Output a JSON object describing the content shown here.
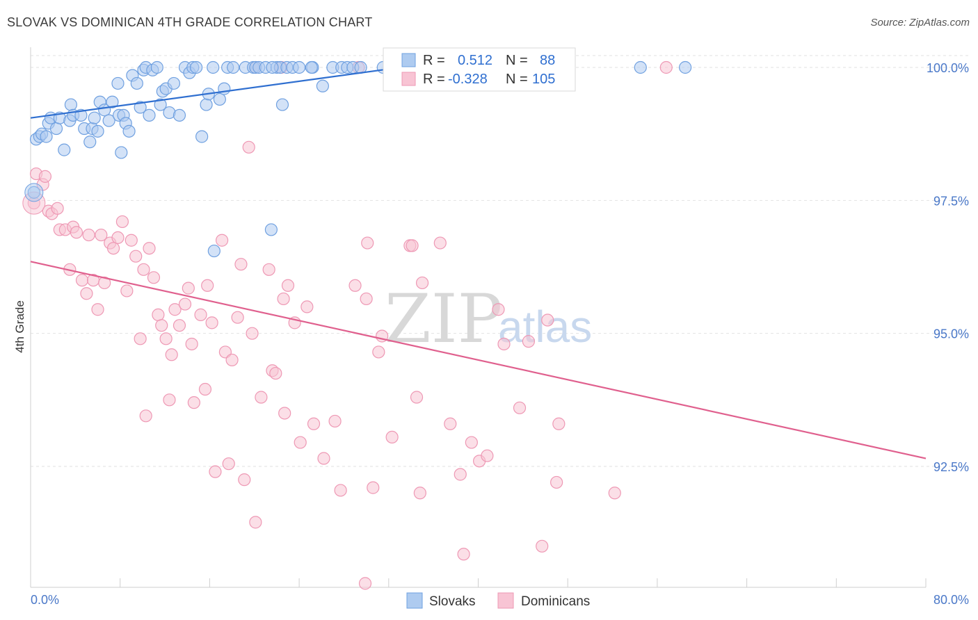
{
  "title": "SLOVAK VS DOMINICAN 4TH GRADE CORRELATION CHART",
  "source": "Source: ZipAtlas.com",
  "watermark": {
    "left": "ZIP",
    "right": "atlas"
  },
  "legend": {
    "r_label": "R =",
    "n_label": "N =",
    "rows": [
      {
        "r": "0.512",
        "n": "88"
      },
      {
        "r": "-0.328",
        "n": "105"
      }
    ]
  },
  "bottom_legend": [
    "Slovaks",
    "Dominicans"
  ],
  "colors": {
    "slovak_fill": "#aecbf0",
    "slovak_stroke": "#6fa0e0",
    "slovak_line": "#2f6fd0",
    "dominican_fill": "#f8c4d4",
    "dominican_stroke": "#ee98b4",
    "dominican_line": "#e0608e",
    "axis_text": "#4a78c8",
    "grid": "#e2e2e2"
  },
  "chart_data": {
    "type": "scatter",
    "title": "SLOVAK VS DOMINICAN 4TH GRADE CORRELATION CHART",
    "xlabel": "",
    "ylabel": "4th Grade",
    "xlim": [
      0,
      80
    ],
    "ylim": [
      90.0,
      100.2
    ],
    "x_tick_labels": [
      "0.0%",
      "80.0%"
    ],
    "y_ticks": [
      92.5,
      95.0,
      97.5,
      100.0
    ],
    "y_tick_labels": [
      "92.5%",
      "95.0%",
      "97.5%",
      "100.0%"
    ],
    "grid": true,
    "legend_position": "top-center",
    "series": [
      {
        "name": "Slovaks",
        "r": 0.512,
        "n": 88,
        "trend": {
          "x": [
            0,
            32
          ],
          "y": [
            99.05,
            99.97
          ]
        },
        "points": [
          [
            0.3,
            97.65
          ],
          [
            0.5,
            98.65
          ],
          [
            0.8,
            98.7
          ],
          [
            1.0,
            98.75
          ],
          [
            1.4,
            98.7
          ],
          [
            1.6,
            98.95
          ],
          [
            1.8,
            99.05
          ],
          [
            2.3,
            98.85
          ],
          [
            2.6,
            99.05
          ],
          [
            3.0,
            98.45
          ],
          [
            3.5,
            99.0
          ],
          [
            3.6,
            99.3
          ],
          [
            3.8,
            99.1
          ],
          [
            4.5,
            99.1
          ],
          [
            4.8,
            98.85
          ],
          [
            5.3,
            98.6
          ],
          [
            5.5,
            98.85
          ],
          [
            5.7,
            99.05
          ],
          [
            6.0,
            98.8
          ],
          [
            6.2,
            99.35
          ],
          [
            6.6,
            99.2
          ],
          [
            7.0,
            99.0
          ],
          [
            7.3,
            99.35
          ],
          [
            7.8,
            99.7
          ],
          [
            7.9,
            99.1
          ],
          [
            8.1,
            98.4
          ],
          [
            8.3,
            99.1
          ],
          [
            8.5,
            98.95
          ],
          [
            8.8,
            98.8
          ],
          [
            9.1,
            99.85
          ],
          [
            9.5,
            99.7
          ],
          [
            9.8,
            99.25
          ],
          [
            10.1,
            99.95
          ],
          [
            10.3,
            100.0
          ],
          [
            10.6,
            99.1
          ],
          [
            10.9,
            99.95
          ],
          [
            11.3,
            100.0
          ],
          [
            11.6,
            99.3
          ],
          [
            11.8,
            99.55
          ],
          [
            12.1,
            99.6
          ],
          [
            12.4,
            99.15
          ],
          [
            12.8,
            99.7
          ],
          [
            13.3,
            99.1
          ],
          [
            13.8,
            100.0
          ],
          [
            14.2,
            99.9
          ],
          [
            14.5,
            100.0
          ],
          [
            14.8,
            100.0
          ],
          [
            15.3,
            98.7
          ],
          [
            15.7,
            99.3
          ],
          [
            15.9,
            99.5
          ],
          [
            16.3,
            100.0
          ],
          [
            16.9,
            99.4
          ],
          [
            17.3,
            99.6
          ],
          [
            17.6,
            100.0
          ],
          [
            18.1,
            100.0
          ],
          [
            19.2,
            100.0
          ],
          [
            19.9,
            100.0
          ],
          [
            20.1,
            100.0
          ],
          [
            20.4,
            100.0
          ],
          [
            21.0,
            100.0
          ],
          [
            21.5,
            96.95
          ],
          [
            22.0,
            100.0
          ],
          [
            22.3,
            100.0
          ],
          [
            22.5,
            99.3
          ],
          [
            22.9,
            100.0
          ],
          [
            23.4,
            100.0
          ],
          [
            24.0,
            100.0
          ],
          [
            25.2,
            100.0
          ],
          [
            26.1,
            99.65
          ],
          [
            27.0,
            100.0
          ],
          [
            27.8,
            100.0
          ],
          [
            28.3,
            100.0
          ],
          [
            28.8,
            100.0
          ],
          [
            29.5,
            100.0
          ],
          [
            31.5,
            100.0
          ],
          [
            33.0,
            100.0
          ],
          [
            35.0,
            100.0
          ],
          [
            37.8,
            100.0
          ],
          [
            38.5,
            100.0
          ],
          [
            41.3,
            100.0
          ],
          [
            43.6,
            100.0
          ],
          [
            45.3,
            100.0
          ],
          [
            47.2,
            100.0
          ],
          [
            54.5,
            100.0
          ],
          [
            58.5,
            100.0
          ],
          [
            16.4,
            96.55
          ],
          [
            21.6,
            100.0
          ],
          [
            25.1,
            100.0
          ]
        ]
      },
      {
        "name": "Dominicans",
        "r": -0.328,
        "n": 105,
        "trend": {
          "x": [
            0,
            80
          ],
          "y": [
            96.35,
            92.65
          ]
        },
        "points": [
          [
            0.3,
            97.45
          ],
          [
            0.5,
            98.0
          ],
          [
            1.1,
            97.8
          ],
          [
            1.3,
            97.95
          ],
          [
            1.6,
            97.3
          ],
          [
            1.9,
            97.25
          ],
          [
            2.4,
            97.35
          ],
          [
            2.6,
            96.95
          ],
          [
            3.1,
            96.95
          ],
          [
            3.5,
            96.2
          ],
          [
            3.8,
            97.0
          ],
          [
            4.1,
            96.9
          ],
          [
            4.6,
            96.0
          ],
          [
            5.0,
            95.75
          ],
          [
            5.2,
            96.85
          ],
          [
            5.6,
            96.0
          ],
          [
            6.0,
            95.45
          ],
          [
            6.3,
            96.85
          ],
          [
            6.6,
            95.95
          ],
          [
            7.1,
            96.7
          ],
          [
            7.4,
            96.6
          ],
          [
            7.8,
            96.8
          ],
          [
            8.2,
            97.1
          ],
          [
            8.6,
            95.8
          ],
          [
            9.0,
            96.75
          ],
          [
            9.4,
            96.45
          ],
          [
            9.8,
            94.9
          ],
          [
            10.1,
            96.2
          ],
          [
            10.3,
            93.45
          ],
          [
            10.6,
            96.6
          ],
          [
            11.0,
            96.05
          ],
          [
            11.4,
            95.35
          ],
          [
            11.7,
            95.15
          ],
          [
            12.1,
            94.9
          ],
          [
            12.4,
            93.75
          ],
          [
            12.6,
            94.6
          ],
          [
            12.9,
            95.45
          ],
          [
            13.3,
            95.15
          ],
          [
            13.8,
            95.55
          ],
          [
            14.1,
            95.85
          ],
          [
            14.4,
            94.8
          ],
          [
            14.6,
            93.7
          ],
          [
            15.2,
            95.35
          ],
          [
            15.6,
            93.95
          ],
          [
            15.8,
            95.9
          ],
          [
            16.2,
            95.2
          ],
          [
            16.5,
            92.4
          ],
          [
            17.1,
            96.75
          ],
          [
            17.4,
            94.65
          ],
          [
            17.7,
            92.55
          ],
          [
            18.0,
            94.5
          ],
          [
            18.5,
            95.3
          ],
          [
            18.8,
            96.3
          ],
          [
            19.1,
            92.25
          ],
          [
            19.5,
            98.5
          ],
          [
            19.8,
            95.0
          ],
          [
            20.1,
            91.45
          ],
          [
            20.6,
            93.8
          ],
          [
            21.3,
            96.2
          ],
          [
            21.6,
            94.3
          ],
          [
            21.9,
            94.25
          ],
          [
            22.6,
            95.65
          ],
          [
            23.0,
            95.9
          ],
          [
            23.6,
            95.2
          ],
          [
            24.1,
            92.95
          ],
          [
            24.7,
            95.5
          ],
          [
            25.3,
            93.3
          ],
          [
            26.2,
            92.65
          ],
          [
            27.2,
            93.35
          ],
          [
            27.7,
            92.05
          ],
          [
            29.0,
            95.9
          ],
          [
            29.3,
            100.0
          ],
          [
            30.0,
            95.65
          ],
          [
            30.6,
            92.1
          ],
          [
            31.1,
            94.65
          ],
          [
            31.4,
            94.95
          ],
          [
            32.3,
            93.05
          ],
          [
            33.2,
            100.0
          ],
          [
            33.9,
            96.65
          ],
          [
            34.5,
            93.8
          ],
          [
            34.8,
            92.0
          ],
          [
            35.0,
            95.95
          ],
          [
            36.6,
            96.7
          ],
          [
            37.5,
            93.3
          ],
          [
            38.4,
            92.35
          ],
          [
            38.7,
            90.85
          ],
          [
            39.4,
            92.95
          ],
          [
            40.1,
            92.6
          ],
          [
            40.8,
            92.7
          ],
          [
            41.8,
            95.45
          ],
          [
            42.3,
            94.8
          ],
          [
            43.7,
            93.6
          ],
          [
            44.5,
            94.85
          ],
          [
            46.2,
            95.25
          ],
          [
            47.0,
            92.2
          ],
          [
            47.2,
            93.3
          ],
          [
            52.2,
            92.0
          ],
          [
            56.8,
            100.0
          ],
          [
            29.9,
            90.3
          ],
          [
            30.1,
            96.7
          ],
          [
            22.4,
            100.0
          ],
          [
            20.1,
            100.0
          ],
          [
            34.1,
            96.65
          ],
          [
            22.7,
            93.5
          ],
          [
            45.7,
            91.0
          ]
        ]
      }
    ]
  }
}
